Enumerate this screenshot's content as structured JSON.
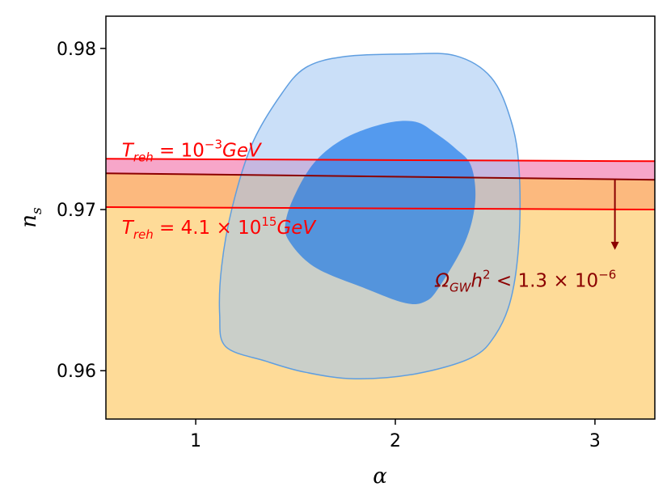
{
  "chart_data": {
    "type": "area",
    "xlabel": "α",
    "ylabel_base": "n",
    "ylabel_sub": "s",
    "xlim": [
      0.55,
      3.3
    ],
    "ylim": [
      0.957,
      0.982
    ],
    "x_ticks": [
      1,
      2,
      3
    ],
    "x_tick_labels": [
      "1",
      "2",
      "3"
    ],
    "y_ticks": [
      0.96,
      0.97,
      0.98
    ],
    "y_tick_labels": [
      "0.96",
      "0.97",
      "0.98"
    ],
    "grid": false,
    "colors": {
      "contour_outer": "#9ec4f3",
      "contour_outer_edge": "#5f9ee0",
      "contour_inner": "#0b6fe8",
      "band_orange": "#fcb97e",
      "region_yellow": "#fedb98",
      "band_pink": "#f7a6c9",
      "reheating_lines": "#ff0000",
      "gw_line": "#8b0000"
    },
    "contour_outer": [
      [
        1.15,
        0.9615
      ],
      [
        1.35,
        0.9606
      ],
      [
        1.55,
        0.9599
      ],
      [
        1.8,
        0.9595
      ],
      [
        2.1,
        0.9598
      ],
      [
        2.38,
        0.9608
      ],
      [
        2.5,
        0.9622
      ],
      [
        2.58,
        0.9645
      ],
      [
        2.62,
        0.9682
      ],
      [
        2.62,
        0.9725
      ],
      [
        2.58,
        0.9755
      ],
      [
        2.48,
        0.9782
      ],
      [
        2.3,
        0.97955
      ],
      [
        2.05,
        0.97965
      ],
      [
        1.75,
        0.9795
      ],
      [
        1.55,
        0.9788
      ],
      [
        1.42,
        0.977
      ],
      [
        1.28,
        0.974
      ],
      [
        1.18,
        0.97
      ],
      [
        1.13,
        0.9665
      ],
      [
        1.12,
        0.9635
      ]
    ],
    "contour_inner": [
      [
        1.47,
        0.968
      ],
      [
        1.6,
        0.9664
      ],
      [
        1.85,
        0.9651
      ],
      [
        2.05,
        0.9642
      ],
      [
        2.15,
        0.9643
      ],
      [
        2.22,
        0.9652
      ],
      [
        2.35,
        0.968
      ],
      [
        2.4,
        0.9705
      ],
      [
        2.38,
        0.9727
      ],
      [
        2.3,
        0.9738
      ],
      [
        2.2,
        0.97475
      ],
      [
        2.1,
        0.97545
      ],
      [
        1.95,
        0.97535
      ],
      [
        1.75,
        0.97445
      ],
      [
        1.6,
        0.973
      ],
      [
        1.5,
        0.971
      ],
      [
        1.45,
        0.9692
      ]
    ],
    "band_upper_line": {
      "x": [
        0.55,
        3.3
      ],
      "y": [
        0.97315,
        0.973
      ]
    },
    "band_middle_line": {
      "x": [
        0.55,
        3.3
      ],
      "y": [
        0.97225,
        0.97185
      ]
    },
    "band_lower_line": {
      "x": [
        0.55,
        3.3
      ],
      "y": [
        0.97015,
        0.97
      ]
    },
    "arrow": {
      "x": 3.1,
      "y_start": 0.97185,
      "y_end": 0.9675
    },
    "annotations": [
      {
        "base": "T",
        "sub": "reh",
        "rest": " = 10",
        "sup": "−3",
        "unit": "GeV",
        "color": "#ff0000",
        "x": 0.63,
        "y": 0.9733
      },
      {
        "base": "T",
        "sub": "reh",
        "rest": " = 4.1 × 10",
        "sup": "15",
        "unit": "GeV",
        "color": "#ff0000",
        "x": 0.63,
        "y": 0.9685
      },
      {
        "base": "Ω",
        "sub": "GW",
        "rest2": "h",
        "sup2": "2",
        "rest": " < 1.3 × 10",
        "sup": "−6",
        "color": "#8b0000",
        "x": 2.2,
        "y": 0.9652
      }
    ]
  }
}
